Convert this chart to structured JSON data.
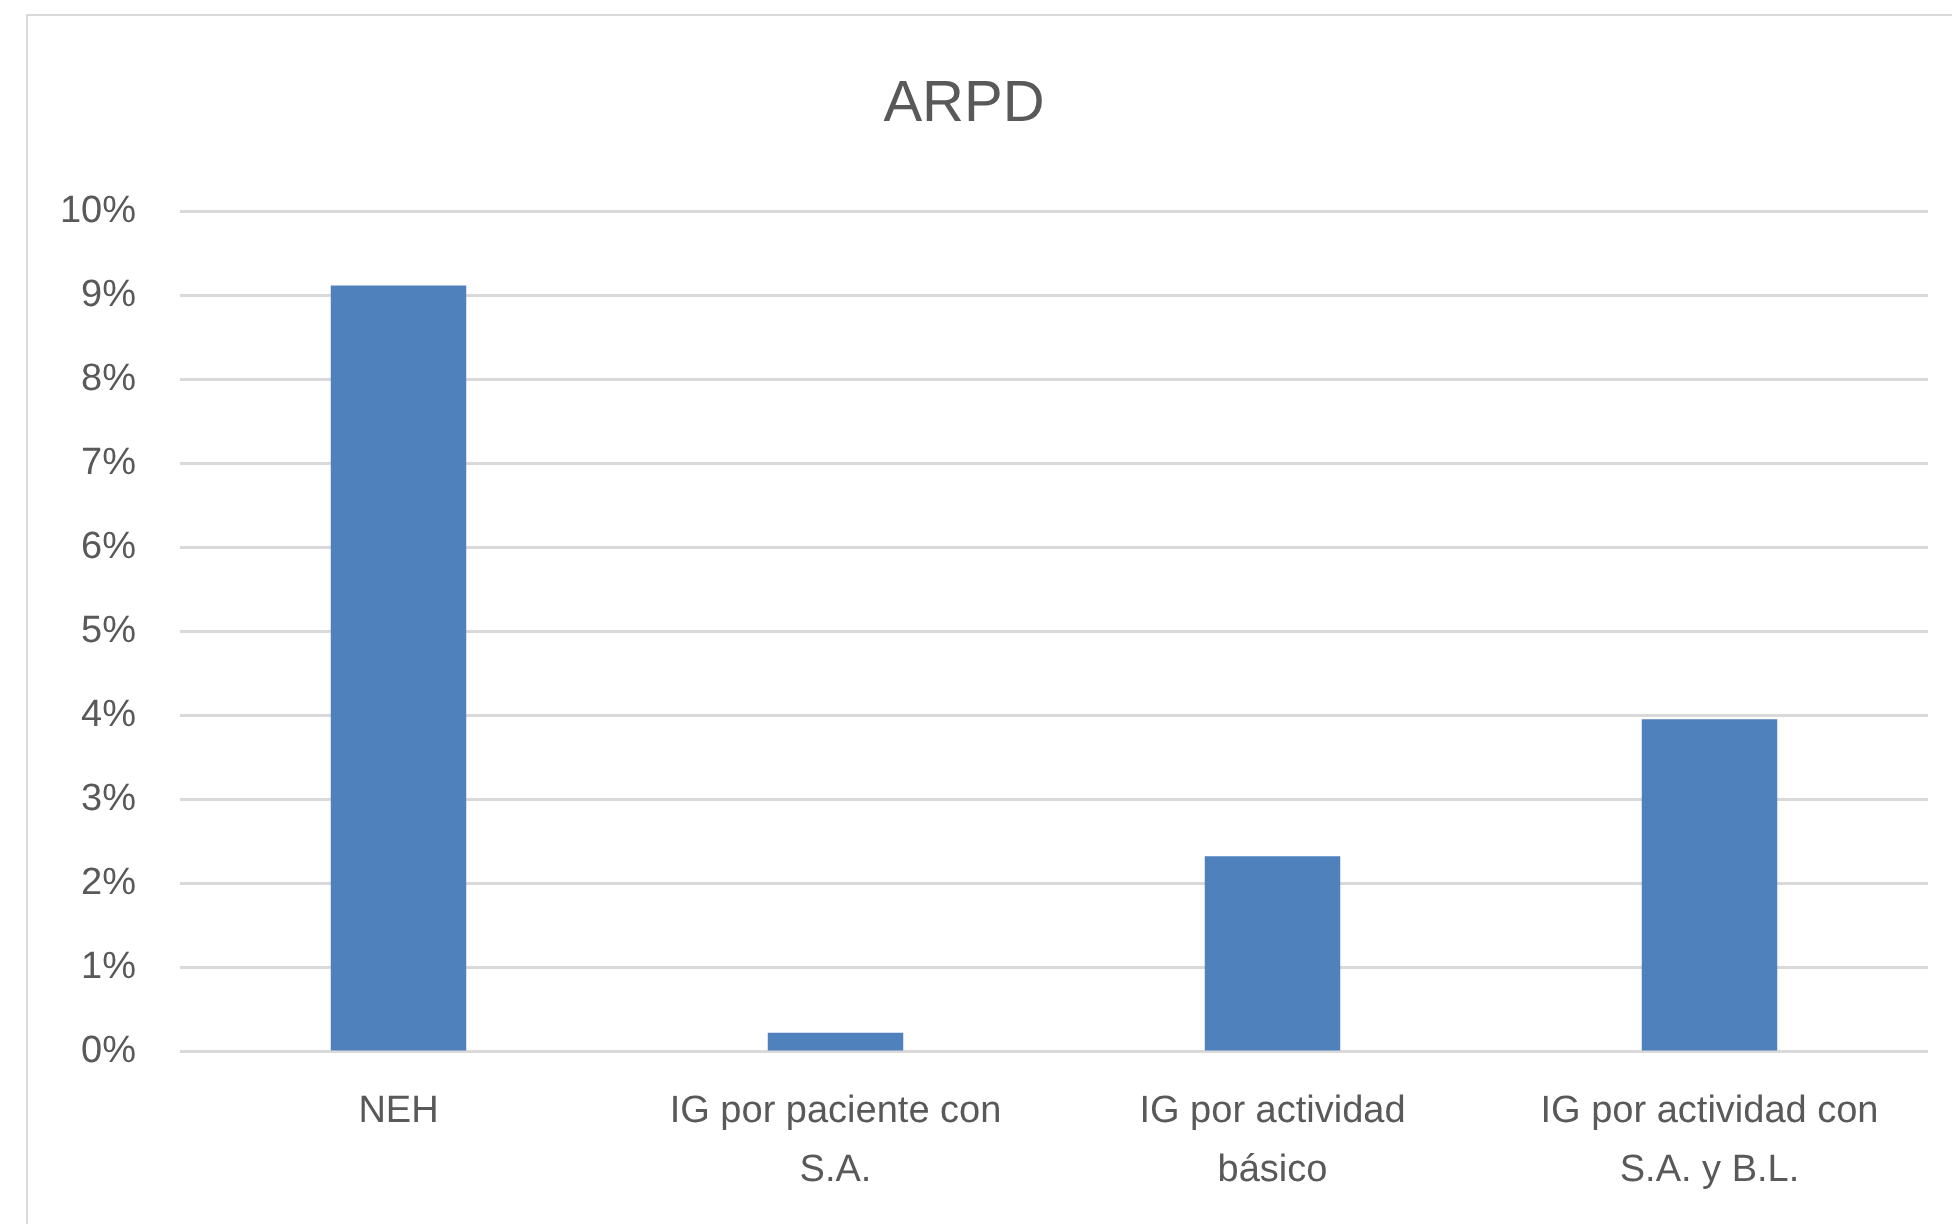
{
  "chart_data": {
    "type": "bar",
    "title": "ARPD",
    "categories": [
      "NEH",
      "IG por paciente con S.A.",
      "IG por actividad básico",
      "IG por actividad con S.A. y B.L."
    ],
    "values": [
      9.12,
      0.23,
      2.33,
      3.96
    ],
    "color": "#4f81bd",
    "ylim": [
      0,
      10
    ],
    "yticks": [
      {
        "value": 0,
        "label": "0%"
      },
      {
        "value": 1,
        "label": "1%"
      },
      {
        "value": 2,
        "label": "2%"
      },
      {
        "value": 3,
        "label": "3%"
      },
      {
        "value": 4,
        "label": "4%"
      },
      {
        "value": 5,
        "label": "5%"
      },
      {
        "value": 6,
        "label": "6%"
      },
      {
        "value": 7,
        "label": "7%"
      },
      {
        "value": 8,
        "label": "8%"
      },
      {
        "value": 9,
        "label": "9%"
      },
      {
        "value": 10,
        "label": "10%"
      }
    ],
    "grid": "y",
    "legend": false
  }
}
